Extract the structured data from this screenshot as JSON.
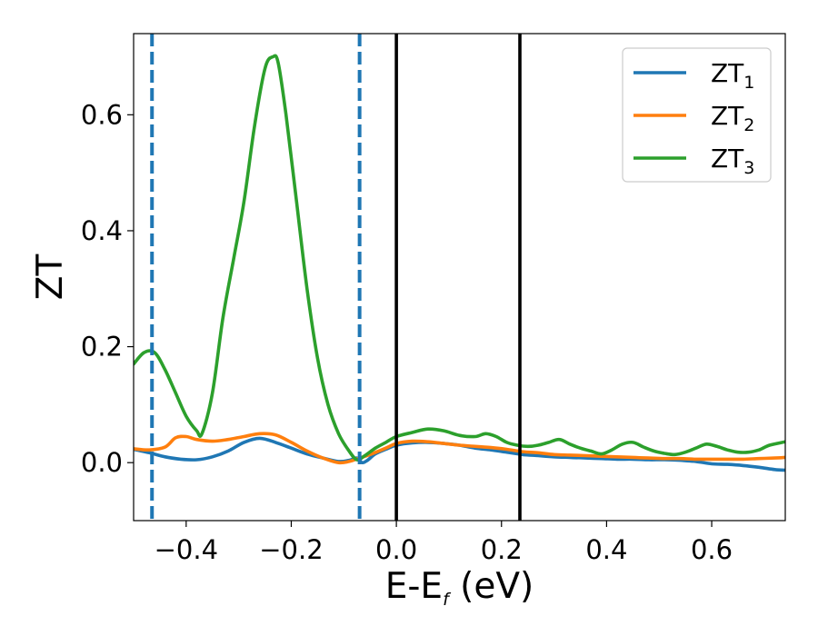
{
  "chart_data": {
    "type": "line",
    "title": "",
    "xlabel": {
      "base": "E-E",
      "sub": "f",
      "suffix": " (eV)"
    },
    "ylabel": "ZT",
    "xlim": [
      -0.5,
      0.74
    ],
    "ylim": [
      -0.1,
      0.74
    ],
    "x_ticks": [
      -0.4,
      -0.2,
      0.0,
      0.2,
      0.4,
      0.6
    ],
    "x_tick_labels": [
      "−0.4",
      "−0.2",
      "0.0",
      "0.2",
      "0.4",
      "0.6"
    ],
    "y_ticks": [
      0.0,
      0.2,
      0.4,
      0.6
    ],
    "y_tick_labels": [
      "0.0",
      "0.2",
      "0.4",
      "0.6"
    ],
    "grid": false,
    "legend_position": "top-right",
    "series": [
      {
        "name": "ZT",
        "name_sub": "1",
        "color": "#1f77b4",
        "x": [
          -0.5,
          -0.47,
          -0.44,
          -0.41,
          -0.38,
          -0.35,
          -0.32,
          -0.29,
          -0.26,
          -0.23,
          -0.2,
          -0.17,
          -0.14,
          -0.11,
          -0.09,
          -0.075,
          -0.065,
          -0.055,
          -0.04,
          -0.02,
          0.0,
          0.03,
          0.06,
          0.09,
          0.12,
          0.15,
          0.18,
          0.21,
          0.24,
          0.27,
          0.3,
          0.33,
          0.36,
          0.39,
          0.42,
          0.45,
          0.48,
          0.51,
          0.54,
          0.57,
          0.6,
          0.63,
          0.66,
          0.69,
          0.72,
          0.74
        ],
        "y": [
          0.023,
          0.017,
          0.01,
          0.006,
          0.005,
          0.01,
          0.02,
          0.035,
          0.042,
          0.035,
          0.025,
          0.015,
          0.008,
          0.002,
          0.004,
          0.008,
          0.0,
          0.004,
          0.015,
          0.023,
          0.03,
          0.034,
          0.035,
          0.033,
          0.03,
          0.025,
          0.022,
          0.018,
          0.014,
          0.012,
          0.01,
          0.009,
          0.008,
          0.007,
          0.006,
          0.006,
          0.005,
          0.005,
          0.004,
          0.002,
          -0.002,
          -0.003,
          -0.005,
          -0.008,
          -0.012,
          -0.013
        ]
      },
      {
        "name": "ZT",
        "name_sub": "2",
        "color": "#ff7f0e",
        "x": [
          -0.5,
          -0.47,
          -0.44,
          -0.42,
          -0.4,
          -0.38,
          -0.35,
          -0.32,
          -0.29,
          -0.26,
          -0.23,
          -0.2,
          -0.17,
          -0.14,
          -0.11,
          -0.09,
          -0.07,
          -0.05,
          -0.02,
          0.0,
          0.03,
          0.06,
          0.09,
          0.12,
          0.15,
          0.18,
          0.21,
          0.24,
          0.27,
          0.3,
          0.33,
          0.36,
          0.39,
          0.42,
          0.45,
          0.48,
          0.51,
          0.54,
          0.57,
          0.6,
          0.63,
          0.66,
          0.69,
          0.72,
          0.74
        ],
        "y": [
          0.024,
          0.022,
          0.027,
          0.043,
          0.045,
          0.04,
          0.037,
          0.04,
          0.045,
          0.05,
          0.048,
          0.035,
          0.02,
          0.008,
          0.0,
          0.002,
          0.008,
          0.014,
          0.025,
          0.033,
          0.037,
          0.036,
          0.033,
          0.03,
          0.028,
          0.026,
          0.023,
          0.019,
          0.017,
          0.014,
          0.013,
          0.012,
          0.011,
          0.01,
          0.009,
          0.008,
          0.007,
          0.007,
          0.006,
          0.006,
          0.006,
          0.006,
          0.007,
          0.008,
          0.009
        ]
      },
      {
        "name": "ZT",
        "name_sub": "3",
        "color": "#2ca02c",
        "x": [
          -0.5,
          -0.48,
          -0.46,
          -0.44,
          -0.42,
          -0.4,
          -0.38,
          -0.37,
          -0.35,
          -0.33,
          -0.31,
          -0.29,
          -0.27,
          -0.25,
          -0.235,
          -0.225,
          -0.21,
          -0.19,
          -0.17,
          -0.15,
          -0.13,
          -0.11,
          -0.09,
          -0.075,
          -0.06,
          -0.04,
          -0.02,
          0.0,
          0.03,
          0.06,
          0.09,
          0.12,
          0.15,
          0.17,
          0.19,
          0.21,
          0.23,
          0.25,
          0.27,
          0.29,
          0.31,
          0.33,
          0.35,
          0.37,
          0.39,
          0.41,
          0.43,
          0.45,
          0.47,
          0.49,
          0.51,
          0.53,
          0.55,
          0.57,
          0.59,
          0.61,
          0.63,
          0.65,
          0.67,
          0.69,
          0.71,
          0.74
        ],
        "y": [
          0.17,
          0.19,
          0.19,
          0.16,
          0.12,
          0.08,
          0.055,
          0.05,
          0.12,
          0.25,
          0.35,
          0.45,
          0.58,
          0.68,
          0.7,
          0.69,
          0.6,
          0.45,
          0.3,
          0.18,
          0.1,
          0.05,
          0.02,
          0.005,
          0.012,
          0.025,
          0.035,
          0.045,
          0.052,
          0.058,
          0.055,
          0.047,
          0.045,
          0.05,
          0.045,
          0.035,
          0.03,
          0.028,
          0.03,
          0.035,
          0.04,
          0.032,
          0.025,
          0.02,
          0.015,
          0.022,
          0.032,
          0.035,
          0.027,
          0.02,
          0.016,
          0.014,
          0.018,
          0.025,
          0.032,
          0.028,
          0.022,
          0.018,
          0.018,
          0.022,
          0.03,
          0.036
        ]
      }
    ],
    "vlines": [
      {
        "x": -0.465,
        "color": "#1f77b4",
        "style": "dashed"
      },
      {
        "x": -0.07,
        "color": "#1f77b4",
        "style": "dashed"
      },
      {
        "x": 0.0,
        "color": "#000000",
        "style": "solid"
      },
      {
        "x": 0.235,
        "color": "#000000",
        "style": "solid"
      }
    ]
  }
}
